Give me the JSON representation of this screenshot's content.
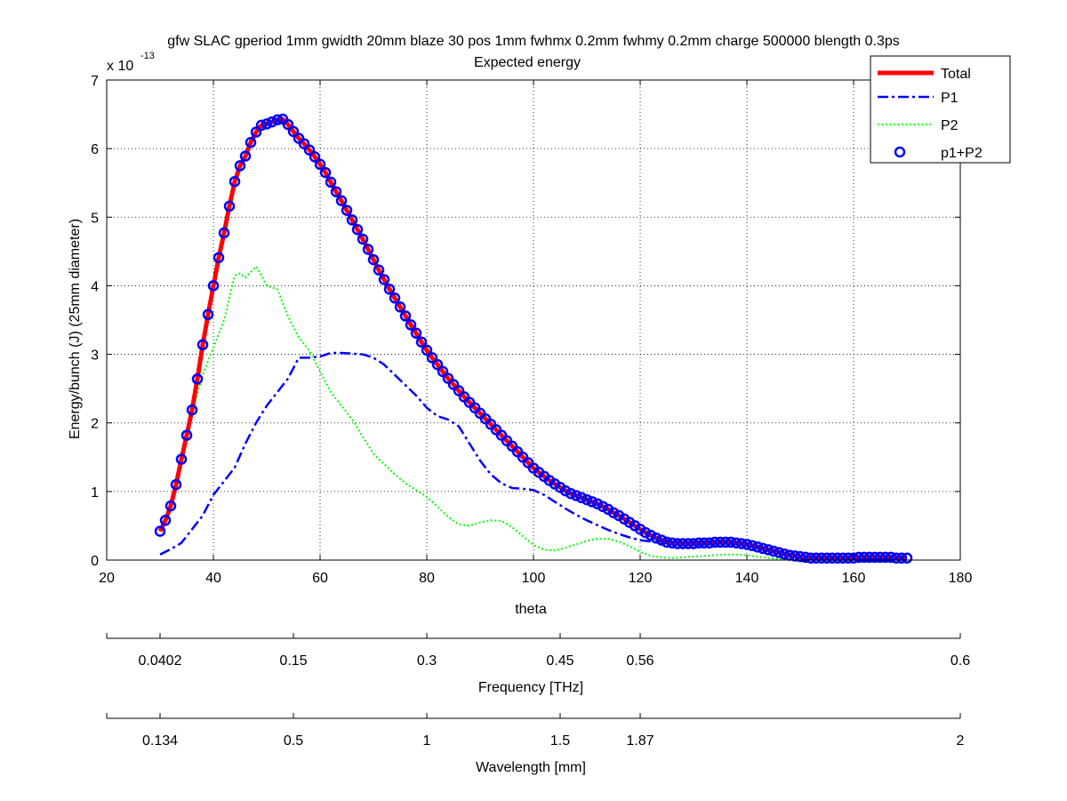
{
  "chart_data": {
    "type": "line",
    "title": "gfw SLAC gperiod 1mm gwidth 20mm blaze 30 pos 1mm fwhmx 0.2mm fwhmy 0.2mm charge 500000 blength 0.3ps",
    "subtitle": "Expected energy",
    "xlabel": "theta",
    "ylabel": "Energy/bunch (J) (25mm diameter)",
    "y_multiplier_base": "x 10",
    "y_multiplier_exp": "-13",
    "xlim": [
      20,
      180
    ],
    "ylim": [
      0,
      7
    ],
    "xticks": [
      20,
      40,
      60,
      80,
      100,
      120,
      140,
      160,
      180
    ],
    "yticks": [
      0,
      1,
      2,
      3,
      4,
      5,
      6,
      7
    ],
    "grid": true,
    "legend_position": "top-right",
    "series": [
      {
        "name": "Total",
        "color": "#ff0000",
        "style": "solid-thick",
        "x": [
          30,
          31,
          32,
          33,
          34,
          35,
          36,
          37,
          38,
          39,
          40,
          41,
          42,
          43,
          44,
          45,
          46,
          47,
          48,
          49,
          50,
          51,
          52,
          53,
          54,
          55,
          56,
          57,
          58,
          59,
          60,
          61,
          62,
          63,
          64,
          65,
          66,
          67,
          68,
          69,
          70,
          71,
          72,
          73,
          74,
          75,
          76,
          77,
          78,
          79,
          80,
          81,
          82,
          83,
          84,
          85,
          86,
          87,
          88,
          89,
          90,
          91,
          92,
          93,
          94,
          95,
          96,
          97,
          98,
          99,
          100,
          101,
          102,
          103,
          104,
          105,
          106,
          107,
          108,
          109,
          110,
          111,
          112,
          113,
          114,
          115,
          116,
          117,
          118,
          119,
          120,
          121,
          122,
          123,
          124,
          125,
          126,
          127,
          128,
          129,
          130,
          131,
          132,
          133,
          134,
          135,
          136,
          137,
          138,
          139,
          140,
          141,
          142,
          143,
          144,
          145,
          146,
          147,
          148,
          149,
          150,
          151,
          152,
          153,
          154,
          155,
          156,
          157,
          158,
          159,
          160,
          161,
          162,
          163,
          164,
          165,
          166,
          167,
          168,
          169,
          170
        ],
        "values": [
          0.42,
          0.58,
          0.79,
          1.1,
          1.47,
          1.82,
          2.19,
          2.64,
          3.14,
          3.58,
          4.0,
          4.41,
          4.77,
          5.16,
          5.52,
          5.75,
          5.89,
          6.09,
          6.24,
          6.34,
          6.36,
          6.39,
          6.42,
          6.43,
          6.35,
          6.25,
          6.15,
          6.07,
          5.98,
          5.88,
          5.77,
          5.65,
          5.51,
          5.37,
          5.24,
          5.1,
          4.96,
          4.82,
          4.68,
          4.53,
          4.38,
          4.23,
          4.09,
          3.95,
          3.82,
          3.69,
          3.56,
          3.43,
          3.31,
          3.18,
          3.06,
          2.95,
          2.85,
          2.75,
          2.65,
          2.56,
          2.47,
          2.38,
          2.3,
          2.22,
          2.14,
          2.06,
          1.98,
          1.9,
          1.82,
          1.74,
          1.66,
          1.58,
          1.5,
          1.42,
          1.34,
          1.28,
          1.22,
          1.16,
          1.11,
          1.06,
          1.01,
          0.97,
          0.94,
          0.91,
          0.88,
          0.85,
          0.82,
          0.78,
          0.74,
          0.69,
          0.65,
          0.6,
          0.55,
          0.5,
          0.45,
          0.4,
          0.36,
          0.32,
          0.29,
          0.26,
          0.25,
          0.24,
          0.24,
          0.24,
          0.24,
          0.25,
          0.25,
          0.25,
          0.26,
          0.26,
          0.26,
          0.26,
          0.25,
          0.24,
          0.23,
          0.21,
          0.19,
          0.17,
          0.15,
          0.13,
          0.11,
          0.09,
          0.07,
          0.06,
          0.05,
          0.04,
          0.03,
          0.03,
          0.03,
          0.03,
          0.03,
          0.03,
          0.03,
          0.03,
          0.03,
          0.04,
          0.04,
          0.04,
          0.04,
          0.04,
          0.04,
          0.04,
          0.03,
          0.03,
          0.03
        ]
      },
      {
        "name": "P1",
        "color": "#0000ff",
        "style": "dashdot",
        "x": [
          30,
          32,
          34,
          36,
          38,
          40,
          42,
          44,
          46,
          48,
          50,
          52,
          54,
          56,
          58,
          60,
          62,
          64,
          66,
          68,
          70,
          72,
          74,
          76,
          78,
          80,
          82,
          84,
          86,
          88,
          90,
          92,
          94,
          96,
          98,
          100,
          102,
          104,
          106,
          108,
          110,
          112,
          114,
          116,
          118,
          120,
          122,
          124,
          126,
          128,
          130,
          132,
          134,
          136,
          138,
          140,
          142,
          144,
          146,
          148,
          150,
          152,
          154,
          156,
          158,
          160,
          162,
          164,
          166,
          168,
          170
        ],
        "values": [
          0.08,
          0.16,
          0.25,
          0.45,
          0.65,
          0.95,
          1.15,
          1.35,
          1.7,
          2.0,
          2.25,
          2.45,
          2.65,
          2.95,
          2.95,
          2.97,
          3.02,
          3.02,
          3.01,
          3.0,
          2.95,
          2.85,
          2.7,
          2.55,
          2.4,
          2.22,
          2.1,
          2.05,
          1.95,
          1.7,
          1.45,
          1.25,
          1.12,
          1.05,
          1.04,
          1.02,
          0.95,
          0.85,
          0.75,
          0.66,
          0.58,
          0.51,
          0.44,
          0.38,
          0.33,
          0.29,
          0.27,
          0.25,
          0.24,
          0.24,
          0.25,
          0.26,
          0.27,
          0.27,
          0.26,
          0.24,
          0.2,
          0.15,
          0.11,
          0.07,
          0.05,
          0.03,
          0.02,
          0.02,
          0.02,
          0.02,
          0.02,
          0.02,
          0.02,
          0.02,
          0.02
        ]
      },
      {
        "name": "P2",
        "color": "#00ff00",
        "style": "dotted",
        "x": [
          36,
          38,
          40,
          42,
          44,
          45,
          46,
          47,
          48,
          49,
          50,
          52,
          54,
          56,
          58,
          60,
          62,
          64,
          66,
          68,
          70,
          72,
          74,
          76,
          78,
          80,
          82,
          84,
          86,
          88,
          90,
          92,
          94,
          96,
          98,
          100,
          102,
          104,
          106,
          108,
          110,
          112,
          114,
          116,
          118,
          120,
          122,
          124,
          126,
          128,
          130,
          132,
          134,
          136,
          138,
          140,
          142,
          144,
          146,
          148,
          150
        ],
        "values": [
          2.15,
          2.7,
          3.1,
          3.5,
          4.15,
          4.18,
          4.12,
          4.2,
          4.28,
          4.15,
          4.0,
          3.95,
          3.55,
          3.25,
          3.05,
          2.75,
          2.45,
          2.25,
          2.05,
          1.8,
          1.55,
          1.4,
          1.25,
          1.12,
          1.02,
          0.92,
          0.78,
          0.63,
          0.52,
          0.5,
          0.55,
          0.58,
          0.57,
          0.48,
          0.35,
          0.22,
          0.15,
          0.14,
          0.18,
          0.23,
          0.28,
          0.31,
          0.31,
          0.27,
          0.2,
          0.12,
          0.06,
          0.04,
          0.03,
          0.04,
          0.05,
          0.06,
          0.07,
          0.08,
          0.08,
          0.07,
          0.05,
          0.03,
          0.02,
          0.01,
          0.0
        ]
      },
      {
        "name": "p1+P2",
        "color": "#0000ff",
        "style": "circle-markers",
        "x": [
          30,
          31,
          32,
          33,
          34,
          35,
          36,
          37,
          38,
          39,
          40,
          41,
          42,
          43,
          44,
          45,
          46,
          47,
          48,
          49,
          50,
          51,
          52,
          53,
          54,
          55,
          56,
          57,
          58,
          59,
          60,
          61,
          62,
          63,
          64,
          65,
          66,
          67,
          68,
          69,
          70,
          71,
          72,
          73,
          74,
          75,
          76,
          77,
          78,
          79,
          80,
          81,
          82,
          83,
          84,
          85,
          86,
          87,
          88,
          89,
          90,
          91,
          92,
          93,
          94,
          95,
          96,
          97,
          98,
          99,
          100,
          101,
          102,
          103,
          104,
          105,
          106,
          107,
          108,
          109,
          110,
          111,
          112,
          113,
          114,
          115,
          116,
          117,
          118,
          119,
          120,
          121,
          122,
          123,
          124,
          125,
          126,
          127,
          128,
          129,
          130,
          131,
          132,
          133,
          134,
          135,
          136,
          137,
          138,
          139,
          140,
          141,
          142,
          143,
          144,
          145,
          146,
          147,
          148,
          149,
          150,
          151,
          152,
          153,
          154,
          155,
          156,
          157,
          158,
          159,
          160,
          161,
          162,
          163,
          164,
          165,
          166,
          167,
          168,
          169,
          170
        ],
        "values": [
          0.42,
          0.58,
          0.79,
          1.1,
          1.47,
          1.82,
          2.19,
          2.64,
          3.14,
          3.58,
          4.0,
          4.41,
          4.77,
          5.16,
          5.52,
          5.75,
          5.89,
          6.09,
          6.24,
          6.34,
          6.36,
          6.39,
          6.42,
          6.43,
          6.35,
          6.25,
          6.15,
          6.07,
          5.98,
          5.88,
          5.77,
          5.65,
          5.51,
          5.37,
          5.24,
          5.1,
          4.96,
          4.82,
          4.68,
          4.53,
          4.38,
          4.23,
          4.09,
          3.95,
          3.82,
          3.69,
          3.56,
          3.43,
          3.31,
          3.18,
          3.06,
          2.95,
          2.85,
          2.75,
          2.65,
          2.56,
          2.47,
          2.38,
          2.3,
          2.22,
          2.14,
          2.06,
          1.98,
          1.9,
          1.82,
          1.74,
          1.66,
          1.58,
          1.5,
          1.42,
          1.34,
          1.28,
          1.22,
          1.16,
          1.11,
          1.06,
          1.01,
          0.97,
          0.94,
          0.91,
          0.88,
          0.85,
          0.82,
          0.78,
          0.74,
          0.69,
          0.65,
          0.6,
          0.55,
          0.5,
          0.45,
          0.4,
          0.36,
          0.32,
          0.29,
          0.26,
          0.25,
          0.24,
          0.24,
          0.24,
          0.24,
          0.25,
          0.25,
          0.25,
          0.26,
          0.26,
          0.26,
          0.26,
          0.25,
          0.24,
          0.23,
          0.21,
          0.19,
          0.17,
          0.15,
          0.13,
          0.11,
          0.09,
          0.07,
          0.06,
          0.05,
          0.04,
          0.03,
          0.03,
          0.03,
          0.03,
          0.03,
          0.03,
          0.03,
          0.03,
          0.03,
          0.04,
          0.04,
          0.04,
          0.04,
          0.04,
          0.04,
          0.04,
          0.03,
          0.03,
          0.03
        ]
      }
    ],
    "secondary_axes": [
      {
        "label": "Frequency [THz]",
        "tick_positions": [
          20,
          30,
          55,
          80,
          105,
          120,
          180
        ],
        "tick_labels": [
          "",
          "0.0402",
          "0.15",
          "0.3",
          "0.45",
          "0.56",
          "0.6"
        ]
      },
      {
        "label": "Wavelength [mm]",
        "tick_positions": [
          20,
          30,
          55,
          80,
          105,
          120,
          180
        ],
        "tick_labels": [
          "",
          "0.134",
          "0.5",
          "1",
          "1.5",
          "1.87",
          "2"
        ]
      }
    ]
  }
}
